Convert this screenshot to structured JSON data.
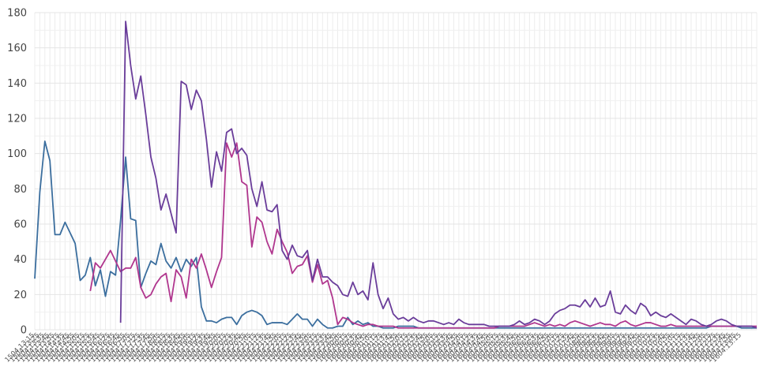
{
  "chart_data": {
    "type": "line",
    "title": "",
    "xlabel": "",
    "ylabel": "",
    "ylim": [
      0,
      180
    ],
    "yticks": [
      0,
      20,
      40,
      60,
      80,
      100,
      120,
      140,
      160,
      180
    ],
    "grid": true,
    "legend": "none",
    "x_tick_labels": [
      "1504.13:15",
      "1504.13:25",
      "1504.13:35",
      "1504.13:45",
      "1504.13:55",
      "1504.14:15",
      "1504.14:35",
      "1504.14:45",
      "1504.14:55",
      "1504.15:05",
      "1504.15:15",
      "1504.15:25",
      "1504.15:35",
      "1504.15:45",
      "1504.16:15",
      "1504.16:25",
      "1504.16:35",
      "1504.16:45",
      "1504.16:55",
      "1504.17:05",
      "1504.17:15",
      "1504.17:25",
      "1504.17:35",
      "1504.17:45",
      "1504.17:55",
      "1504.18:05",
      "1504.18:15",
      "1504.18:25",
      "1504.18:35",
      "1504.18:45",
      "1504.18:55",
      "1504.19:05",
      "1504.19:15",
      "1504.19:25",
      "1504.19:35",
      "1504.19:45",
      "1504.19:55",
      "1504.20:05",
      "1504.20:15",
      "1504.20:25",
      "1504.20:35",
      "1504.20:45",
      "1504.20:55",
      "1504.21:05",
      "1504.21:15",
      "1504.21:25",
      "1504.21:35",
      "1504.21:45",
      "1504.21:55",
      "1504.22:05",
      "1504.22:15",
      "1504.22:25",
      "1504.22:35",
      "1504.22:45",
      "1504.22:55",
      "1504.23:05",
      "1504.23:15",
      "1504.23:25",
      "1504.23:35",
      "1504.23:45",
      "1504.23:55",
      "1604.00:05",
      "1604.00:15",
      "1604.00:25",
      "1604.00:35",
      "1604.00:45",
      "1604.00:55",
      "1604.01:05",
      "1604.01:15",
      "1604.01:25",
      "1604.01:35",
      "1604.01:45",
      "1604.01:55",
      "1604.02:05",
      "1604.02:15",
      "1604.02:25",
      "1604.02:35",
      "1604.02:45",
      "1604.02:55",
      "1604.03:05",
      "1604.03:15",
      "1604.03:25",
      "1604.03:35",
      "1604.03:45",
      "1604.03:55",
      "1604.04:05",
      "1604.04:15",
      "1604.04:25",
      "1604.04:35",
      "1604.04:45",
      "1604.04:55",
      "1604.05:05",
      "1604.05:15",
      "1604.05:25",
      "1604.05:35",
      "1604.05:45",
      "1604.05:55",
      "1604.06:05",
      "1604.06:15",
      "1604.06:25",
      "1604.06:35",
      "1604.06:45",
      "1604.06:55",
      "1604.07:05",
      "1604.07:15",
      "1604.07:25",
      "1604.07:35",
      "1604.07:45",
      "1604.07:55",
      "1604.08:05",
      "1604.08:15",
      "1604.08:25",
      "1604.08:35",
      "1604.08:45",
      "1604.08:55",
      "1604.09:05",
      "1604.09:15",
      "1604.09:25",
      "1604.09:35",
      "1604.09:45",
      "1604.09:55",
      "1604.10:05",
      "1604.10:15",
      "1604.10:25",
      "1604.10:35",
      "1604.10:45",
      "1604.10:55",
      "1604.11:05",
      "1604.11:15",
      "1604.11:25",
      "1604.11:35",
      "1604.11:45",
      "1604.11:55",
      "1604.12:05",
      "1604.12:15",
      "1604.12:25",
      "1604.12:35",
      "1604.12:45",
      "1604.12:55",
      "1604.13:05",
      "1604.13:15"
    ],
    "series": [
      {
        "color": "#3b6e9e",
        "values": [
          29,
          78,
          107,
          96,
          54,
          54,
          61,
          55,
          49,
          28,
          31,
          41,
          25,
          34,
          19,
          33,
          31,
          62,
          98,
          63,
          62,
          24,
          32,
          39,
          37,
          49,
          39,
          35,
          41,
          33,
          40,
          36,
          41,
          13,
          5,
          5,
          4,
          6,
          7,
          7,
          3,
          8,
          10,
          11,
          10,
          8,
          3,
          4,
          4,
          4,
          3,
          6,
          9,
          6,
          6,
          2,
          6,
          3,
          1,
          1,
          2,
          2,
          7,
          3,
          5,
          3,
          4,
          2,
          2,
          1,
          1,
          1,
          2,
          2,
          2,
          2,
          1,
          1,
          1,
          1,
          1,
          1,
          1,
          1,
          1,
          1,
          1,
          1,
          1,
          1,
          1,
          1,
          1,
          1,
          1,
          1,
          1,
          1,
          1,
          1,
          1,
          1,
          1,
          1,
          1,
          1,
          1,
          1,
          1,
          1,
          1,
          1,
          1,
          1,
          1,
          1,
          1,
          1,
          1,
          1,
          1,
          1,
          1,
          1,
          1,
          1,
          1,
          1,
          1,
          1,
          1,
          1,
          1,
          1,
          2,
          2,
          2,
          2,
          2,
          2,
          1,
          1,
          1,
          1
        ]
      },
      {
        "color": "#b0368e",
        "values": [
          null,
          null,
          null,
          null,
          null,
          null,
          null,
          null,
          null,
          null,
          null,
          22,
          38,
          35,
          40,
          45,
          39,
          33,
          35,
          35,
          41,
          24,
          18,
          20,
          26,
          30,
          32,
          16,
          34,
          30,
          18,
          40,
          35,
          43,
          34,
          24,
          33,
          41,
          106,
          98,
          106,
          84,
          82,
          47,
          64,
          61,
          50,
          43,
          57,
          50,
          44,
          32,
          36,
          37,
          42,
          27,
          37,
          26,
          28,
          18,
          3,
          7,
          6,
          4,
          3,
          2,
          3,
          3,
          2,
          2,
          2,
          2,
          1,
          1,
          1,
          1,
          1,
          1,
          1,
          1,
          1,
          1,
          1,
          1,
          1,
          1,
          1,
          1,
          1,
          1,
          1,
          1,
          2,
          2,
          2,
          2,
          2,
          2,
          3,
          4,
          3,
          2,
          3,
          2,
          3,
          2,
          4,
          5,
          4,
          3,
          2,
          3,
          4,
          3,
          3,
          2,
          4,
          5,
          3,
          2,
          3,
          4,
          4,
          3,
          2,
          2,
          3,
          2,
          2,
          2,
          2,
          2,
          2,
          2,
          2,
          2,
          2,
          2,
          2,
          2,
          2,
          2,
          2,
          2
        ]
      },
      {
        "color": "#6a3d9a",
        "values": [
          null,
          null,
          null,
          null,
          null,
          null,
          null,
          null,
          null,
          null,
          null,
          null,
          null,
          null,
          null,
          null,
          null,
          4,
          175,
          150,
          131,
          144,
          122,
          98,
          86,
          68,
          77,
          66,
          55,
          141,
          139,
          125,
          136,
          130,
          108,
          81,
          101,
          90,
          112,
          114,
          100,
          103,
          99,
          80,
          70,
          84,
          68,
          67,
          71,
          45,
          40,
          48,
          42,
          41,
          45,
          28,
          40,
          30,
          30,
          27,
          25,
          20,
          19,
          27,
          20,
          22,
          17,
          38,
          20,
          12,
          18,
          9,
          6,
          7,
          5,
          7,
          5,
          4,
          5,
          5,
          4,
          3,
          4,
          3,
          6,
          4,
          3,
          3,
          3,
          3,
          2,
          2,
          2,
          2,
          2,
          3,
          5,
          3,
          4,
          6,
          5,
          3,
          5,
          9,
          11,
          12,
          14,
          14,
          13,
          17,
          13,
          18,
          13,
          14,
          22,
          10,
          9,
          14,
          11,
          9,
          15,
          13,
          8,
          10,
          8,
          7,
          9,
          7,
          5,
          3,
          6,
          5,
          3,
          2,
          3,
          5,
          6,
          5,
          3,
          2,
          2,
          2,
          2,
          1
        ]
      }
    ]
  }
}
